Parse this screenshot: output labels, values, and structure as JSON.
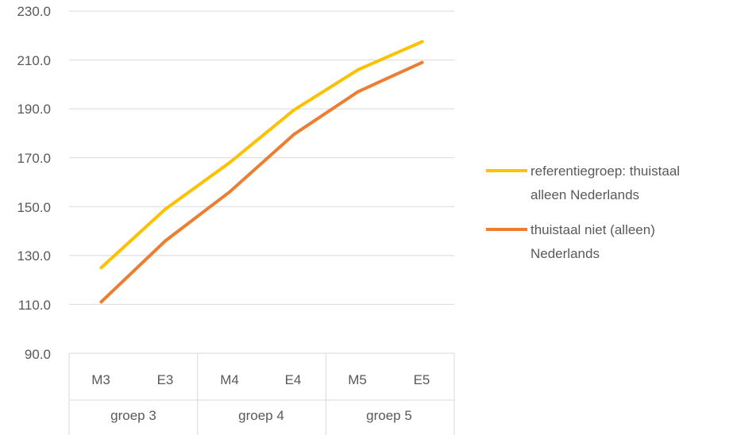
{
  "chart_data": {
    "type": "line",
    "categories": [
      "M3",
      "E3",
      "M4",
      "E4",
      "M5",
      "E5"
    ],
    "groups": [
      {
        "label": "groep 3",
        "categories": [
          "M3",
          "E3"
        ]
      },
      {
        "label": "groep 4",
        "categories": [
          "M4",
          "E4"
        ]
      },
      {
        "label": "groep 5",
        "categories": [
          "M5",
          "E5"
        ]
      }
    ],
    "series": [
      {
        "name_lines": [
          "referentiegroep: thuistaal",
          "alleen Nederlands"
        ],
        "color": "#FFC000",
        "values": [
          125.0,
          149.0,
          168.0,
          189.5,
          206.0,
          217.5
        ]
      },
      {
        "name_lines": [
          "thuistaal niet (alleen)",
          "Nederlands"
        ],
        "color": "#ED7D31",
        "values": [
          111.0,
          136.0,
          156.0,
          179.5,
          197.0,
          209.0
        ]
      }
    ],
    "yticks": [
      "230.0",
      "210.0",
      "190.0",
      "170.0",
      "150.0",
      "130.0",
      "110.0",
      "90.0"
    ],
    "ylim": [
      90,
      230
    ],
    "grid": true,
    "legend_position": "right"
  }
}
